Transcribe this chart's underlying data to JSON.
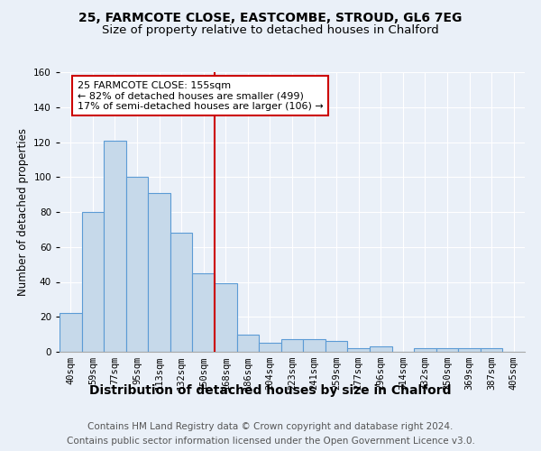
{
  "title1": "25, FARMCOTE CLOSE, EASTCOMBE, STROUD, GL6 7EG",
  "title2": "Size of property relative to detached houses in Chalford",
  "xlabel": "Distribution of detached houses by size in Chalford",
  "ylabel": "Number of detached properties",
  "categories": [
    "40sqm",
    "59sqm",
    "77sqm",
    "95sqm",
    "113sqm",
    "132sqm",
    "150sqm",
    "168sqm",
    "186sqm",
    "204sqm",
    "223sqm",
    "241sqm",
    "259sqm",
    "277sqm",
    "296sqm",
    "314sqm",
    "332sqm",
    "350sqm",
    "369sqm",
    "387sqm",
    "405sqm"
  ],
  "values": [
    22,
    80,
    121,
    100,
    91,
    68,
    45,
    39,
    10,
    5,
    7,
    7,
    6,
    2,
    3,
    0,
    2,
    2,
    2,
    2,
    0
  ],
  "bar_color": "#c6d9ea",
  "bar_edge_color": "#5b9bd5",
  "bar_linewidth": 0.8,
  "ylim": [
    0,
    160
  ],
  "yticks": [
    0,
    20,
    40,
    60,
    80,
    100,
    120,
    140,
    160
  ],
  "property_line_x": 6.5,
  "property_line_color": "#cc0000",
  "annotation_box_color": "#cc0000",
  "annotation_line1": "25 FARMCOTE CLOSE: 155sqm",
  "annotation_line2": "← 82% of detached houses are smaller (499)",
  "annotation_line3": "17% of semi-detached houses are larger (106) →",
  "footer1": "Contains HM Land Registry data © Crown copyright and database right 2024.",
  "footer2": "Contains public sector information licensed under the Open Government Licence v3.0.",
  "background_color": "#eaf0f8",
  "plot_bg_color": "#eaf0f8",
  "grid_color": "#ffffff",
  "title1_fontsize": 10,
  "title2_fontsize": 9.5,
  "xlabel_fontsize": 10,
  "ylabel_fontsize": 8.5,
  "tick_fontsize": 7.5,
  "footer_fontsize": 7.5,
  "annotation_fontsize": 8
}
